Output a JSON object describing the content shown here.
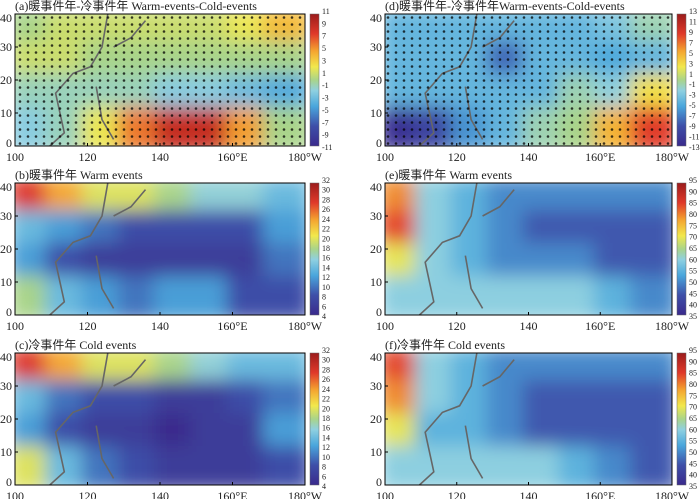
{
  "chart_data": [
    {
      "id": "a",
      "type": "heatmap",
      "title": "(a)暖事件年-冷事件年 Warm-events-Cold-events",
      "xticks": [
        "100",
        "120",
        "140",
        "160°E",
        "180°W"
      ],
      "x_values": [
        100,
        120,
        140,
        160,
        180
      ],
      "yticks": [
        "0",
        "10",
        "20",
        "30",
        "40"
      ],
      "y_values": [
        0,
        10,
        20,
        30,
        40
      ],
      "colorbar_ticks": [
        "11",
        "9",
        "7",
        "5",
        "3",
        "1",
        "-1",
        "-3",
        "-5",
        "-7",
        "-9",
        "-11"
      ],
      "range": [
        -11,
        11
      ],
      "stippled": true,
      "grid_lat": [
        35,
        25,
        15,
        5
      ],
      "grid_lon": [
        105,
        115,
        125,
        135,
        145,
        155,
        165,
        175
      ],
      "values": [
        [
          0,
          1,
          1,
          1,
          1,
          1,
          2,
          4
        ],
        [
          1,
          1,
          0,
          0,
          0,
          0,
          0,
          0
        ],
        [
          -1,
          -1,
          -1,
          -1,
          -2,
          -2,
          -3,
          -4
        ],
        [
          -2,
          -1,
          2,
          6,
          9,
          9,
          5,
          0
        ]
      ]
    },
    {
      "id": "d",
      "type": "heatmap",
      "title": "(d)暖事件年-冷事件年Warm-events-Cold-events",
      "xticks": [
        "100",
        "120",
        "140",
        "160°E",
        "180°W"
      ],
      "x_values": [
        100,
        120,
        140,
        160,
        180
      ],
      "yticks": [
        "0",
        "10",
        "20",
        "30",
        "40"
      ],
      "y_values": [
        0,
        10,
        20,
        30,
        40
      ],
      "colorbar_ticks": [
        "13",
        "11",
        "9",
        "7",
        "5",
        "3",
        "1",
        "-1",
        "-3",
        "-5",
        "-7",
        "-9",
        "-11",
        "-13"
      ],
      "range": [
        -13,
        13
      ],
      "stippled": true,
      "grid_lat": [
        35,
        25,
        15,
        5
      ],
      "grid_lon": [
        105,
        115,
        125,
        135,
        145,
        155,
        165,
        175
      ],
      "values": [
        [
          -4,
          -4,
          -4,
          -4,
          -4,
          -4,
          -3,
          -1
        ],
        [
          -4,
          -4,
          -4,
          -8,
          -4,
          -4,
          -5,
          -4
        ],
        [
          -4,
          -4,
          -4,
          -4,
          -4,
          -1,
          -2,
          3
        ],
        [
          -12,
          -10,
          -6,
          -4,
          -1,
          0,
          5,
          9
        ]
      ]
    },
    {
      "id": "b",
      "type": "heatmap",
      "title": "(b)暖事件年 Warm events",
      "xticks": [
        "100",
        "120",
        "140",
        "160°E",
        "180°W"
      ],
      "x_values": [
        100,
        120,
        140,
        160,
        180
      ],
      "yticks": [
        "0",
        "10",
        "20",
        "30",
        "40"
      ],
      "y_values": [
        0,
        10,
        20,
        30,
        40
      ],
      "colorbar_ticks": [
        "32",
        "30",
        "28",
        "26",
        "24",
        "22",
        "20",
        "18",
        "16",
        "14",
        "12",
        "10",
        "8",
        "6",
        "4"
      ],
      "range": [
        4,
        32
      ],
      "stippled": false,
      "grid_lat": [
        35,
        25,
        15,
        5
      ],
      "grid_lon": [
        105,
        115,
        125,
        135,
        145,
        155,
        165,
        175
      ],
      "values": [
        [
          28,
          24,
          20,
          20,
          18,
          16,
          16,
          14
        ],
        [
          14,
          12,
          10,
          8,
          8,
          8,
          8,
          12
        ],
        [
          12,
          8,
          6,
          6,
          6,
          6,
          6,
          10
        ],
        [
          18,
          14,
          12,
          10,
          12,
          12,
          8,
          8
        ]
      ]
    },
    {
      "id": "e",
      "type": "heatmap",
      "title": "(e)暖事件年 Warm events",
      "xticks": [
        "100",
        "120",
        "140",
        "160°E",
        "180°W"
      ],
      "x_values": [
        100,
        120,
        140,
        160,
        180
      ],
      "yticks": [
        "0",
        "10",
        "20",
        "30",
        "40"
      ],
      "y_values": [
        0,
        10,
        20,
        30,
        40
      ],
      "colorbar_ticks": [
        "95",
        "90",
        "85",
        "80",
        "75",
        "70",
        "65",
        "60",
        "55",
        "50",
        "45",
        "40",
        "35"
      ],
      "range": [
        35,
        95
      ],
      "stippled": false,
      "grid_lat": [
        35,
        25,
        15,
        5
      ],
      "grid_lon": [
        105,
        115,
        125,
        135,
        145,
        155,
        165,
        175
      ],
      "values": [
        [
          80,
          60,
          55,
          50,
          50,
          50,
          50,
          50
        ],
        [
          85,
          60,
          55,
          50,
          45,
          45,
          45,
          45
        ],
        [
          70,
          60,
          55,
          50,
          50,
          50,
          45,
          45
        ],
        [
          60,
          60,
          60,
          60,
          60,
          60,
          55,
          50
        ]
      ]
    },
    {
      "id": "c",
      "type": "heatmap",
      "title": "(c)冷事件年 Cold events",
      "xticks": [
        "100",
        "120",
        "140",
        "160°E",
        "180°W"
      ],
      "x_values": [
        100,
        120,
        140,
        160,
        180
      ],
      "yticks": [
        "0",
        "10",
        "20",
        "30",
        "40"
      ],
      "y_values": [
        0,
        10,
        20,
        30,
        40
      ],
      "colorbar_ticks": [
        "32",
        "30",
        "28",
        "26",
        "24",
        "22",
        "20",
        "18",
        "16",
        "14",
        "12",
        "10",
        "8",
        "6",
        "4"
      ],
      "range": [
        4,
        32
      ],
      "stippled": false,
      "grid_lat": [
        35,
        25,
        15,
        5
      ],
      "grid_lon": [
        105,
        115,
        125,
        135,
        145,
        155,
        165,
        175
      ],
      "values": [
        [
          28,
          24,
          20,
          20,
          18,
          16,
          14,
          14
        ],
        [
          14,
          10,
          8,
          8,
          6,
          6,
          8,
          10
        ],
        [
          12,
          8,
          6,
          6,
          4,
          6,
          6,
          12
        ],
        [
          20,
          14,
          10,
          8,
          6,
          6,
          6,
          8
        ]
      ]
    },
    {
      "id": "f",
      "type": "heatmap",
      "title": "(f)冷事件年 Cold events",
      "xticks": [
        "100",
        "120",
        "140",
        "160°E",
        "180°W"
      ],
      "x_values": [
        100,
        120,
        140,
        160,
        180
      ],
      "yticks": [
        "0",
        "10",
        "20",
        "30",
        "40"
      ],
      "y_values": [
        0,
        10,
        20,
        30,
        40
      ],
      "colorbar_ticks": [
        "95",
        "90",
        "85",
        "80",
        "75",
        "70",
        "65",
        "60",
        "55",
        "50",
        "45",
        "40",
        "35"
      ],
      "range": [
        35,
        95
      ],
      "stippled": false,
      "grid_lat": [
        35,
        25,
        15,
        5
      ],
      "grid_lon": [
        105,
        115,
        125,
        135,
        145,
        155,
        165,
        175
      ],
      "values": [
        [
          85,
          60,
          55,
          50,
          50,
          50,
          50,
          50
        ],
        [
          80,
          60,
          55,
          50,
          45,
          45,
          45,
          45
        ],
        [
          70,
          55,
          55,
          50,
          45,
          45,
          45,
          45
        ],
        [
          60,
          60,
          60,
          60,
          60,
          55,
          50,
          45
        ]
      ]
    }
  ]
}
